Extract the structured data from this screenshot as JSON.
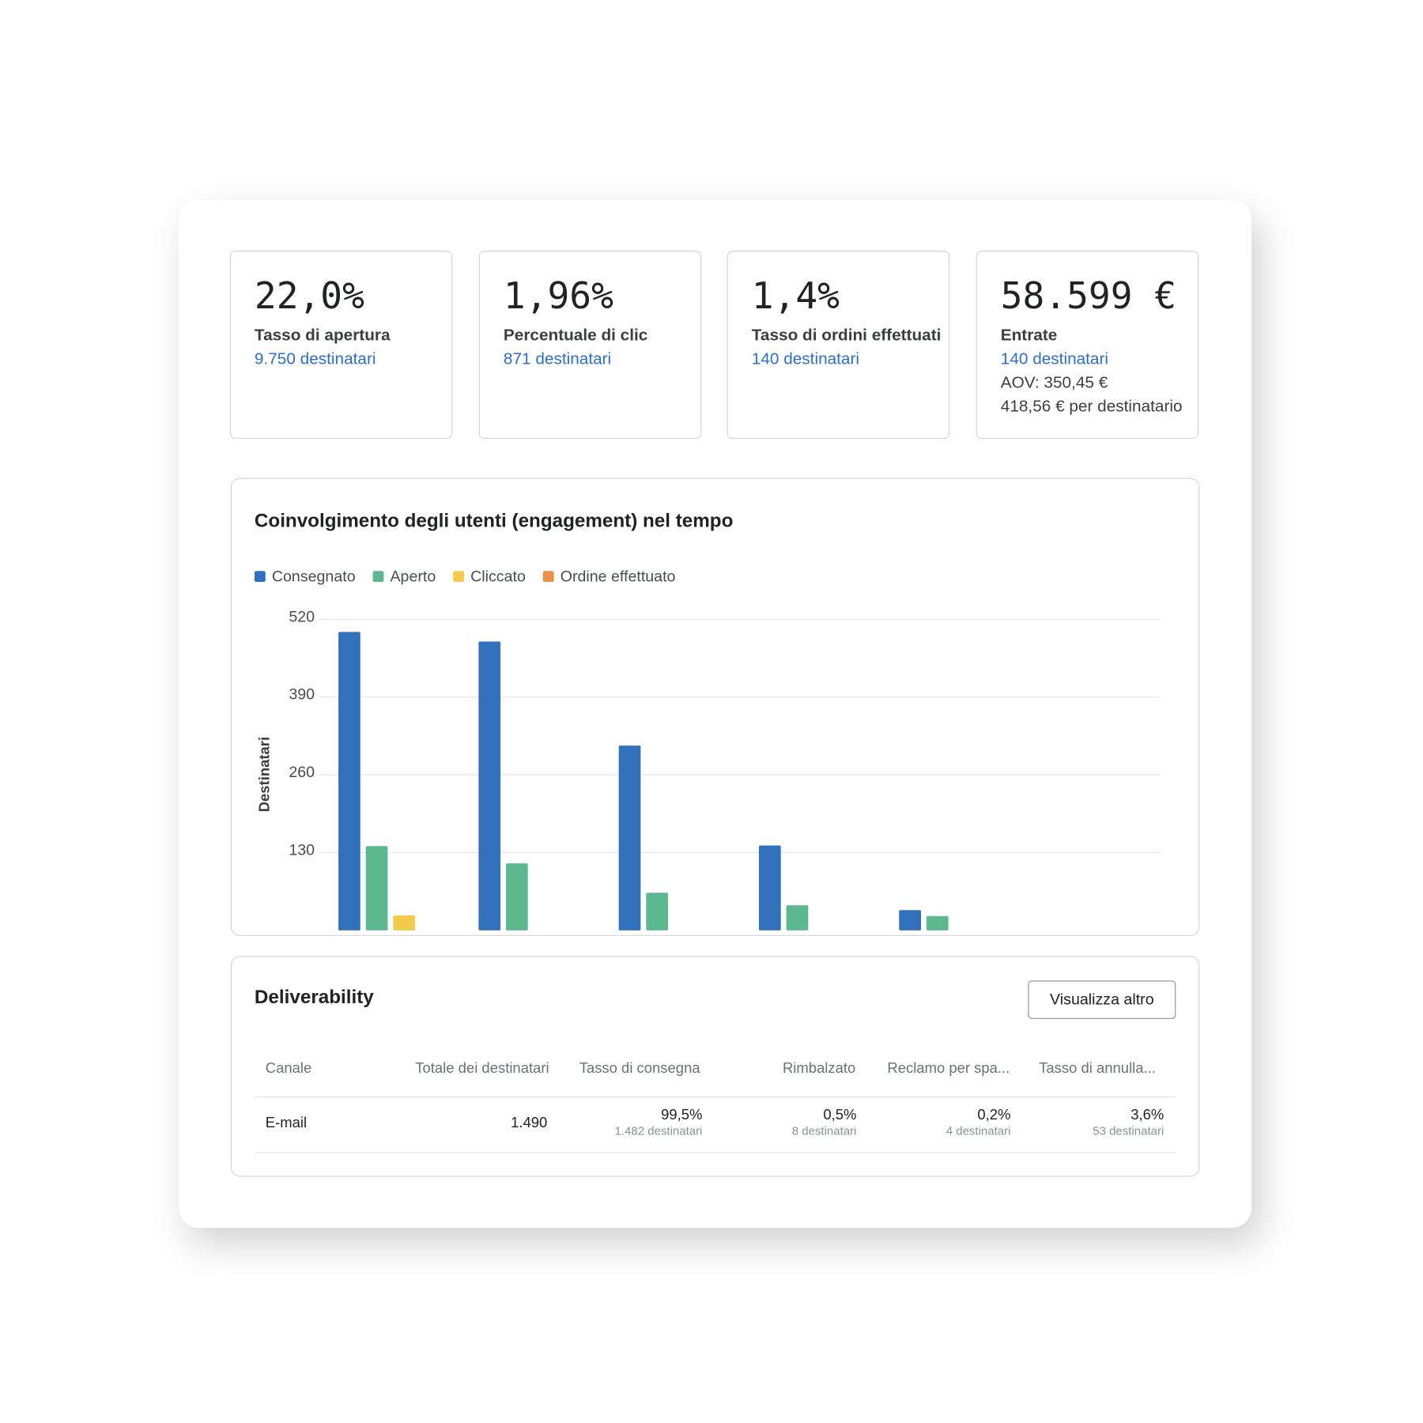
{
  "metrics": [
    {
      "value": "22,0%",
      "label": "Tasso di apertura",
      "link": "9.750 destinatari"
    },
    {
      "value": "1,96%",
      "label": "Percentuale di clic",
      "link": "871 destinatari"
    },
    {
      "value": "1,4%",
      "label": "Tasso di ordini effettuati",
      "link": "140 destinatari"
    },
    {
      "value": "58.599 €",
      "label": "Entrate",
      "link": "140 destinatari",
      "details": [
        "AOV: 350,45 €",
        "418,56 € per destinatario"
      ]
    }
  ],
  "chart_data": {
    "type": "bar",
    "title": "Coinvolgimento degli utenti (engagement) nel tempo",
    "y_label": "Destinatari",
    "categories": [
      null,
      null,
      null,
      null,
      null,
      null
    ],
    "series": [
      {
        "name": "Consegnato",
        "color": "#3171bb",
        "values": [
          499,
          483,
          309,
          142,
          34,
          0
        ]
      },
      {
        "name": "Aperto",
        "color": "#5bb88f",
        "values": [
          141,
          112,
          63,
          42,
          24,
          0
        ]
      },
      {
        "name": "Cliccato",
        "color": "#f2cb4b",
        "values": [
          25,
          0,
          0,
          0,
          0,
          0
        ]
      },
      {
        "name": "Ordine effettuato",
        "color": "#e8904a",
        "values": [
          0,
          0,
          0,
          0,
          0,
          0
        ]
      }
    ],
    "ylim": [
      0,
      520
    ],
    "yticks": [
      130,
      260,
      390,
      520
    ],
    "grid": true
  },
  "deliverability": {
    "title": "Deliverability",
    "button": "Visualizza altro",
    "columns": [
      "Canale",
      "Totale dei destinatari",
      "Tasso di consegna",
      "Rimbalzato",
      "Reclamo per spa...",
      "Tasso di annulla..."
    ],
    "row": [
      {
        "text": "E-mail"
      },
      {
        "text": "1.490"
      },
      {
        "text": "99,5%",
        "sub": "1.482 destinatari"
      },
      {
        "text": "0,5%",
        "sub": "8 destinatari"
      },
      {
        "text": "0,2%",
        "sub": "4 destinatari"
      },
      {
        "text": "3,6%",
        "sub": "53 destinatari"
      }
    ]
  }
}
